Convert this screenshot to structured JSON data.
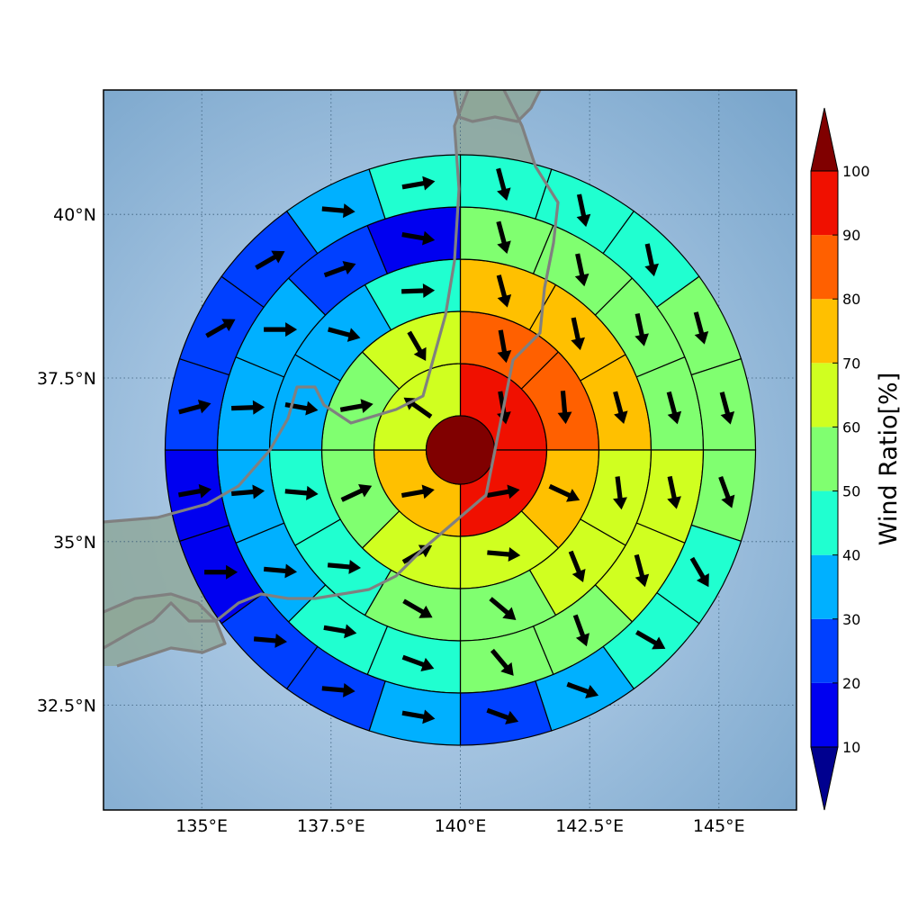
{
  "map": {
    "lon_ticks": [
      "135°E",
      "137.5°E",
      "140°E",
      "142.5°E",
      "145°E"
    ],
    "lat_ticks": [
      "40°N",
      "37.5°N",
      "35°N",
      "32.5°N"
    ],
    "lon_values": [
      135,
      137.5,
      140,
      142.5,
      145
    ],
    "lat_values": [
      40,
      37.5,
      35,
      32.5
    ],
    "extent": {
      "lon": [
        133.1,
        146.5
      ],
      "lat": [
        30.9,
        41.9
      ]
    },
    "gridline_style": "dotted",
    "ocean_color": "#8fb5d8",
    "land_color": "#7f9a8a",
    "coastline_color": "#808080"
  },
  "colorbar": {
    "title": "Wind Ratio[%]",
    "ticks": [
      "10",
      "20",
      "30",
      "40",
      "50",
      "60",
      "70",
      "80",
      "90",
      "100"
    ],
    "bins": [
      {
        "from": 0,
        "to": 10,
        "color": "#00008f"
      },
      {
        "from": 10,
        "to": 20,
        "color": "#0000f0"
      },
      {
        "from": 20,
        "to": 30,
        "color": "#0040ff"
      },
      {
        "from": 30,
        "to": 40,
        "color": "#00b0ff"
      },
      {
        "from": 40,
        "to": 50,
        "color": "#20ffd0"
      },
      {
        "from": 50,
        "to": 60,
        "color": "#80ff70"
      },
      {
        "from": 60,
        "to": 70,
        "color": "#d0ff20"
      },
      {
        "from": 70,
        "to": 80,
        "color": "#ffc000"
      },
      {
        "from": 80,
        "to": 90,
        "color": "#ff6000"
      },
      {
        "from": 90,
        "to": 100,
        "color": "#f01000"
      },
      {
        "from": 100,
        "to": 110,
        "color": "#800000"
      }
    ],
    "extend": "both"
  },
  "chart_data": {
    "type": "polar-grid",
    "center": {
      "lon": 140,
      "lat": 36.4,
      "value": 100
    },
    "rings": [
      {
        "sectors": 4,
        "values": [
          95,
          95,
          70,
          60
        ],
        "arrow_dir_deg": [
          170,
          80,
          80,
          305
        ]
      },
      {
        "sectors": 8,
        "values": [
          85,
          85,
          75,
          62,
          60,
          55,
          55,
          62
        ],
        "arrow_dir_deg": [
          170,
          175,
          115,
          95,
          60,
          65,
          80,
          150
        ]
      },
      {
        "sectors": 12,
        "values": [
          75,
          75,
          75,
          65,
          62,
          55,
          55,
          48,
          42,
          35,
          35,
          48
        ],
        "arrow_dir_deg": [
          165,
          168,
          165,
          173,
          158,
          130,
          120,
          95,
          95,
          100,
          105,
          88
        ]
      },
      {
        "sectors": 16,
        "values": [
          55,
          55,
          55,
          55,
          65,
          62,
          55,
          55,
          45,
          45,
          35,
          35,
          35,
          35,
          25,
          15
        ],
        "arrow_dir_deg": [
          165,
          168,
          168,
          165,
          168,
          165,
          160,
          140,
          110,
          100,
          95,
          85,
          88,
          90,
          70,
          100
        ]
      },
      {
        "sectors": 20,
        "values": [
          45,
          45,
          45,
          55,
          55,
          55,
          45,
          45,
          35,
          25,
          35,
          25,
          25,
          15,
          15,
          20,
          20,
          25,
          35,
          45
        ],
        "arrow_dir_deg": [
          165,
          168,
          168,
          165,
          165,
          160,
          150,
          120,
          110,
          110,
          100,
          95,
          95,
          90,
          80,
          75,
          60,
          60,
          95,
          80
        ]
      }
    ]
  }
}
